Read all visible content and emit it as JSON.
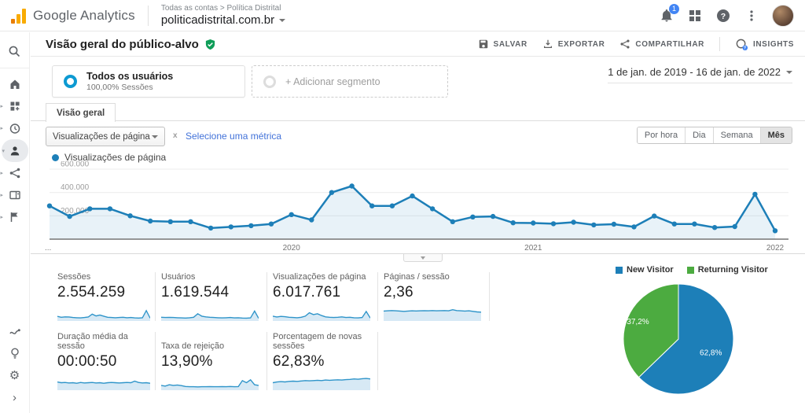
{
  "topbar": {
    "brand": "Google Analytics",
    "breadcrumb": {
      "root": "Todas as contas",
      "separator": ">",
      "current": "Política Distrital"
    },
    "property": "politicadistrital.com.br",
    "notification_count": "1"
  },
  "icons": {
    "help_glyph": "?",
    "gear_glyph": "⚙",
    "chevron_right_glyph": "›",
    "expand_glyph": "▸",
    "expanded_glyph": "▾"
  },
  "report_header": {
    "title": "Visão geral do público-alvo",
    "actions": {
      "save": "SALVAR",
      "export": "EXPORTAR",
      "share": "COMPARTILHAR",
      "insights": "INSIGHTS"
    }
  },
  "segments": {
    "primary": {
      "name": "Todos os usuários",
      "detail": "100,00% Sessões"
    },
    "add_label": "+ Adicionar segmento",
    "date_range": "1 de jan. de 2019 - 16 de jan. de 2022"
  },
  "tabs": {
    "overview": "Visão geral"
  },
  "controls": {
    "metric_selector": "Visualizações de página",
    "metric_separator": "x",
    "add_metric_link": "Selecione uma métrica",
    "granularity": [
      {
        "label": "Por hora",
        "active": false
      },
      {
        "label": "Dia",
        "active": false
      },
      {
        "label": "Semana",
        "active": false
      },
      {
        "label": "Mês",
        "active": true
      }
    ]
  },
  "chart_data": [
    {
      "type": "line",
      "legend": "Visualizações de página",
      "granularity": "monthly",
      "x_range": "jan 2019 - jan 2022",
      "values": [
        285000,
        195000,
        260000,
        260000,
        200000,
        155000,
        150000,
        150000,
        95000,
        105000,
        115000,
        130000,
        210000,
        165000,
        400000,
        455000,
        285000,
        285000,
        370000,
        260000,
        150000,
        190000,
        195000,
        140000,
        138000,
        132000,
        145000,
        122000,
        128000,
        105000,
        198000,
        130000,
        130000,
        100000,
        108000,
        385000,
        72000
      ],
      "ylim": [
        0,
        600000
      ],
      "yticks": [
        {
          "value": 200000,
          "label": "200.000"
        },
        {
          "value": 400000,
          "label": "400.000"
        },
        {
          "value": 600000,
          "label": "600.000"
        }
      ],
      "x_ticks": [
        {
          "index": 0,
          "label": "..."
        },
        {
          "index": 12,
          "label": "2020"
        },
        {
          "index": 24,
          "label": "2021"
        },
        {
          "index": 36,
          "label": "2022"
        }
      ],
      "line_color": "#1d7fb8",
      "fill_color": "#1d7fb8",
      "fill_opacity": 0.1,
      "grid": true,
      "legend_position": "top-left"
    },
    {
      "type": "pie",
      "labels": [
        "New Visitor",
        "Returning Visitor"
      ],
      "values": [
        62.8,
        37.2
      ],
      "value_labels": [
        "62,8%",
        "37,2%"
      ],
      "colors": [
        "#1d7fb8",
        "#4cab40"
      ],
      "legend_position": "top"
    }
  ],
  "stats": {
    "rows": [
      [
        {
          "label": "Sessões",
          "value": "2.554.259"
        },
        {
          "label": "Usuários",
          "value": "1.619.544"
        },
        {
          "label": "Visualizações de página",
          "value": "6.017.761"
        },
        {
          "label": "Páginas / sessão",
          "value": "2,36"
        }
      ],
      [
        {
          "label": "Duração média da sessão",
          "value": "00:00:50"
        },
        {
          "label": "Taxa de rejeição",
          "value": "13,90%"
        },
        {
          "label": "Porcentagem de novas sessões",
          "value": "62,83%"
        }
      ]
    ],
    "sparks": {
      "sessoes": [
        0.28,
        0.22,
        0.25,
        0.24,
        0.2,
        0.18,
        0.17,
        0.2,
        0.24,
        0.45,
        0.32,
        0.38,
        0.3,
        0.22,
        0.2,
        0.18,
        0.2,
        0.22,
        0.18,
        0.2,
        0.17,
        0.16,
        0.18,
        0.72,
        0.15
      ],
      "usuarios": [
        0.22,
        0.2,
        0.21,
        0.2,
        0.18,
        0.17,
        0.16,
        0.18,
        0.22,
        0.48,
        0.3,
        0.25,
        0.22,
        0.2,
        0.18,
        0.17,
        0.18,
        0.2,
        0.17,
        0.18,
        0.16,
        0.15,
        0.17,
        0.68,
        0.14
      ],
      "visualizacoes": [
        0.3,
        0.24,
        0.28,
        0.26,
        0.22,
        0.2,
        0.18,
        0.22,
        0.3,
        0.55,
        0.42,
        0.48,
        0.35,
        0.25,
        0.22,
        0.2,
        0.22,
        0.25,
        0.2,
        0.22,
        0.18,
        0.17,
        0.2,
        0.65,
        0.16
      ],
      "paginas": [
        0.68,
        0.7,
        0.72,
        0.7,
        0.68,
        0.66,
        0.68,
        0.7,
        0.69,
        0.7,
        0.71,
        0.7,
        0.72,
        0.7,
        0.71,
        0.72,
        0.7,
        0.78,
        0.72,
        0.7,
        0.68,
        0.7,
        0.66,
        0.62,
        0.6
      ],
      "duracao": [
        0.55,
        0.5,
        0.52,
        0.48,
        0.5,
        0.46,
        0.52,
        0.48,
        0.5,
        0.52,
        0.48,
        0.5,
        0.46,
        0.5,
        0.52,
        0.5,
        0.48,
        0.5,
        0.52,
        0.5,
        0.62,
        0.52,
        0.48,
        0.5,
        0.46
      ],
      "taxa": [
        0.3,
        0.25,
        0.35,
        0.3,
        0.33,
        0.28,
        0.22,
        0.2,
        0.2,
        0.19,
        0.2,
        0.2,
        0.21,
        0.2,
        0.2,
        0.21,
        0.2,
        0.22,
        0.2,
        0.21,
        0.65,
        0.5,
        0.72,
        0.35,
        0.3
      ],
      "porcentagem": [
        0.5,
        0.55,
        0.58,
        0.56,
        0.6,
        0.62,
        0.6,
        0.63,
        0.66,
        0.64,
        0.66,
        0.68,
        0.66,
        0.7,
        0.68,
        0.7,
        0.72,
        0.7,
        0.73,
        0.75,
        0.78,
        0.76,
        0.8,
        0.82,
        0.78
      ]
    }
  },
  "colors": {
    "accent_blue": "#1d7fb8",
    "pie_green": "#4cab40",
    "link_blue": "#4272d9",
    "badge_blue": "#4285f4",
    "shield_green": "#0f9d58",
    "logo_orange": "#f9ab00",
    "logo_orange_dark": "#e87e04",
    "segment_ring": "#0d9ad2"
  }
}
